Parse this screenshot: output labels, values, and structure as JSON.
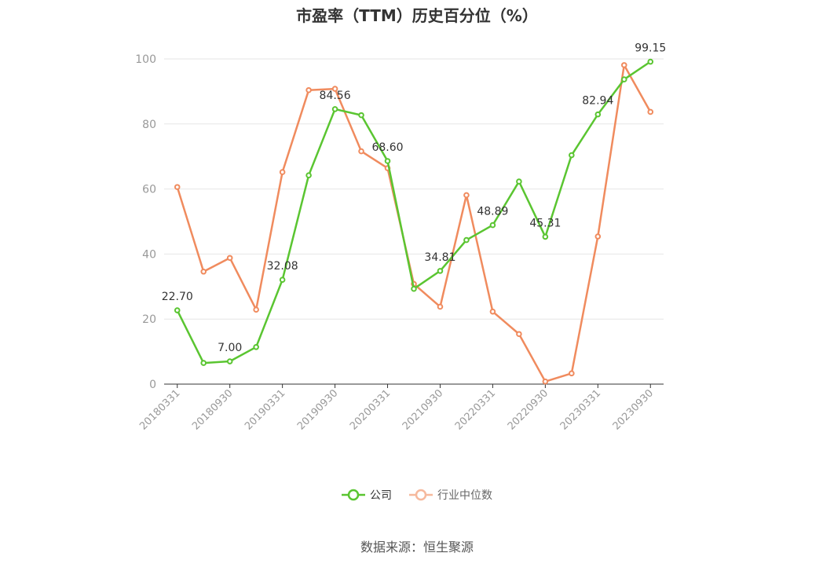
{
  "colors": {
    "company": "#5ac531",
    "industry": "#f08b5e",
    "grid": "#e6e6e6",
    "axis": "#333333",
    "tick_text": "#999999",
    "label_text": "#333333"
  },
  "legend": {
    "company": "公司",
    "industry": "行业中位数"
  },
  "source": "数据来源：恒生聚源",
  "chart_data": {
    "type": "line",
    "title": "市盈率（TTM）历史百分位（%）",
    "xlabel": "",
    "ylabel": "",
    "ylim": [
      0,
      100
    ],
    "yticks": [
      0,
      20,
      40,
      60,
      80,
      100
    ],
    "grid": true,
    "legend_position": "bottom",
    "x": [
      "20180331",
      "20180630",
      "20180930",
      "20181231",
      "20190331",
      "20190630",
      "20190930",
      "20191231",
      "20200331",
      "20200630",
      "20210930",
      "20211231",
      "20220331",
      "20220630",
      "20220930",
      "20221231",
      "20230331",
      "20230630",
      "20230930"
    ],
    "xtick_labels": [
      "20180331",
      "20180930",
      "20190331",
      "20190930",
      "20200331",
      "20210930",
      "20220331",
      "20220930",
      "20230331",
      "20230930"
    ],
    "series": [
      {
        "name": "公司",
        "values": [
          22.7,
          6.5,
          7.0,
          11.4,
          32.08,
          64.2,
          84.56,
          82.7,
          68.6,
          29.3,
          34.81,
          44.3,
          48.89,
          62.3,
          45.31,
          70.4,
          82.94,
          93.7,
          99.15
        ],
        "labels": [
          "22.70",
          null,
          "7.00",
          null,
          "32.08",
          null,
          "84.56",
          null,
          "68.60",
          null,
          "34.81",
          null,
          "48.89",
          null,
          "45.31",
          null,
          "82.94",
          null,
          "99.15"
        ]
      },
      {
        "name": "行业中位数",
        "values": [
          60.6,
          34.6,
          38.8,
          22.9,
          65.2,
          90.4,
          90.8,
          71.6,
          66.4,
          30.8,
          23.8,
          58.1,
          22.3,
          15.4,
          0.8,
          3.3,
          45.4,
          98.1,
          83.7
        ]
      }
    ]
  }
}
